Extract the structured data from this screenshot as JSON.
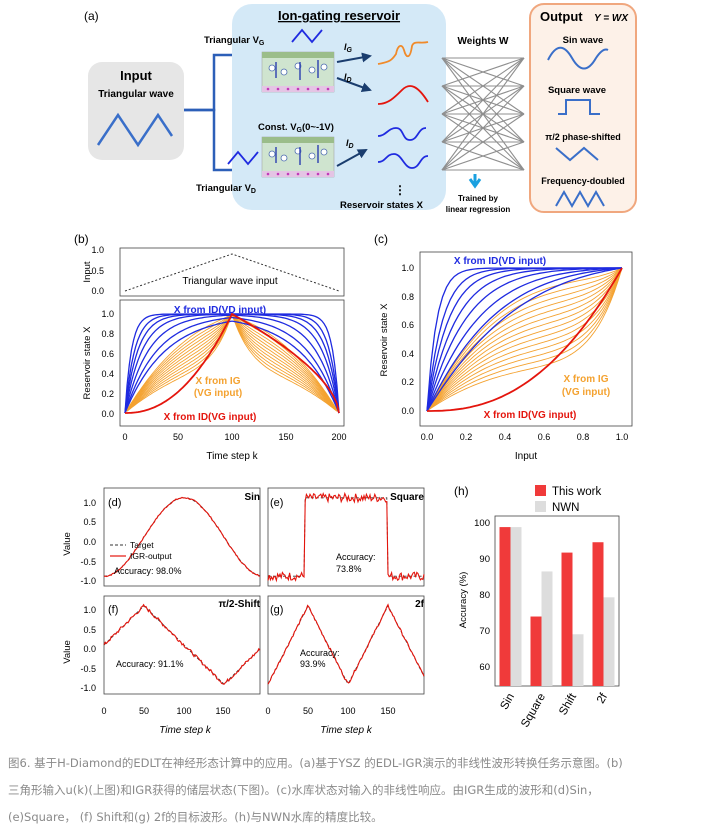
{
  "colors": {
    "input_box": "#e6e6e6",
    "reservoir_box": "#d4e9f7",
    "output_box_fill": "#fdf1e8",
    "output_box_stroke": "#f0a77e",
    "blue": "#1f2be0",
    "orange": "#f4a230",
    "red": "#e4150d",
    "dark_blue_arrow": "#1a3d6e",
    "bar_this": "#f03a3a",
    "bar_nwn": "#dddddd"
  },
  "panel_a": {
    "label": "(a)",
    "input_title": "Input",
    "input_subtitle": "Triangular wave",
    "reservoir_title": "Ion-gating reservoir",
    "tri_vg_label": "Triangular V",
    "tri_vg_sub": "G",
    "const_label": "Const. V",
    "const_sub": "G",
    "const_range": "(0~-1V)",
    "tri_vd_label": "Triangular V",
    "tri_vd_sub": "D",
    "ig_label": "I",
    "ig_sub": "G",
    "id_label": "I",
    "id_sub": "D",
    "id2_label": "I",
    "id2_sub": "D",
    "dots": "⋮",
    "reservoir_states": "Reservoir states X",
    "weights_label": "Weights W",
    "trained_line1": "Trained by",
    "trained_line2": "linear regression",
    "output_title": "Output",
    "output_eq": "Y = WX",
    "out_sin": "Sin wave",
    "out_square": "Square wave",
    "out_shift": "π/2 phase-shifted",
    "out_freq": "Frequency-doubled"
  },
  "panel_b": {
    "label": "(b)",
    "top_ylabel": "Input",
    "top_yticks": [
      "1.0",
      "0.5",
      "0.0"
    ],
    "top_text": "Triangular wave input",
    "ylabel": "Reservoir state X",
    "yticks": [
      "1.0",
      "0.8",
      "0.6",
      "0.4",
      "0.2",
      "0.0"
    ],
    "xticks": [
      "0",
      "50",
      "100",
      "150",
      "200"
    ],
    "xlabel": "Time step k",
    "legend_blue": "X from ID(VD input)",
    "legend_orange_1": "X from IG",
    "legend_orange_2": "(VG input)",
    "legend_red": "X from ID(VG input)"
  },
  "panel_c": {
    "label": "(c)",
    "ylabel": "Reservoir state X",
    "yticks": [
      "1.0",
      "0.8",
      "0.6",
      "0.4",
      "0.2",
      "0.0"
    ],
    "xticks": [
      "0.0",
      "0.2",
      "0.4",
      "0.6",
      "0.8",
      "1.0"
    ],
    "xlabel": "Input",
    "legend_blue": "X from ID(VD input)",
    "legend_orange_1": "X from IG",
    "legend_orange_2": "(VG input)",
    "legend_red": "X from ID(VG input)"
  },
  "panels_defg": {
    "ylabel": "Value",
    "yticks": [
      "1.0",
      "0.5",
      "0.0",
      "-0.5",
      "-1.0"
    ],
    "xticks": [
      "0",
      "50",
      "100",
      "150"
    ],
    "xlabel": "Time step k",
    "legend_target": "Target",
    "legend_output": "IGR-output",
    "d": {
      "label": "(d)",
      "name": "Sin",
      "accuracy": "Accuracy: 98.0%"
    },
    "e": {
      "label": "(e)",
      "name": "Square",
      "accuracy_1": "Accuracy:",
      "accuracy_2": "73.8%"
    },
    "f": {
      "label": "(f)",
      "name": "π/2-Shift",
      "accuracy": "Accuracy: 91.1%"
    },
    "g": {
      "label": "(g)",
      "name": "2f",
      "accuracy_1": "Accuracy:",
      "accuracy_2": "93.9%"
    }
  },
  "chart_data": {
    "type": "bar",
    "label": "(h)",
    "categories": [
      "Sin",
      "Square",
      "Shift",
      "2f"
    ],
    "series": [
      {
        "name": "This work",
        "values": [
          98.0,
          73.8,
          91.1,
          93.9
        ]
      },
      {
        "name": "NWN",
        "values": [
          98.0,
          86.0,
          69.0,
          79.0
        ]
      }
    ],
    "ylabel": "Accuracy (%)",
    "yticks": [
      "100",
      "90",
      "80",
      "70",
      "60"
    ],
    "ylim": [
      55,
      101
    ]
  },
  "caption": {
    "line1": "图6. 基于H-Diamond的EDLT在神经形态计算中的应用。(a)基于YSZ 的EDL-IGR演示的非线性波形转换任务示意图。(b)",
    "line2": "三角形输入u(k)(上图)和IGR获得的储层状态(下图)。(c)水库状态对输入的非线性响应。由IGR生成的波形和(d)Sin，",
    "line3": "(e)Square， (f) Shift和(g) 2f的目标波形。(h)与NWN水库的精度比较。"
  }
}
